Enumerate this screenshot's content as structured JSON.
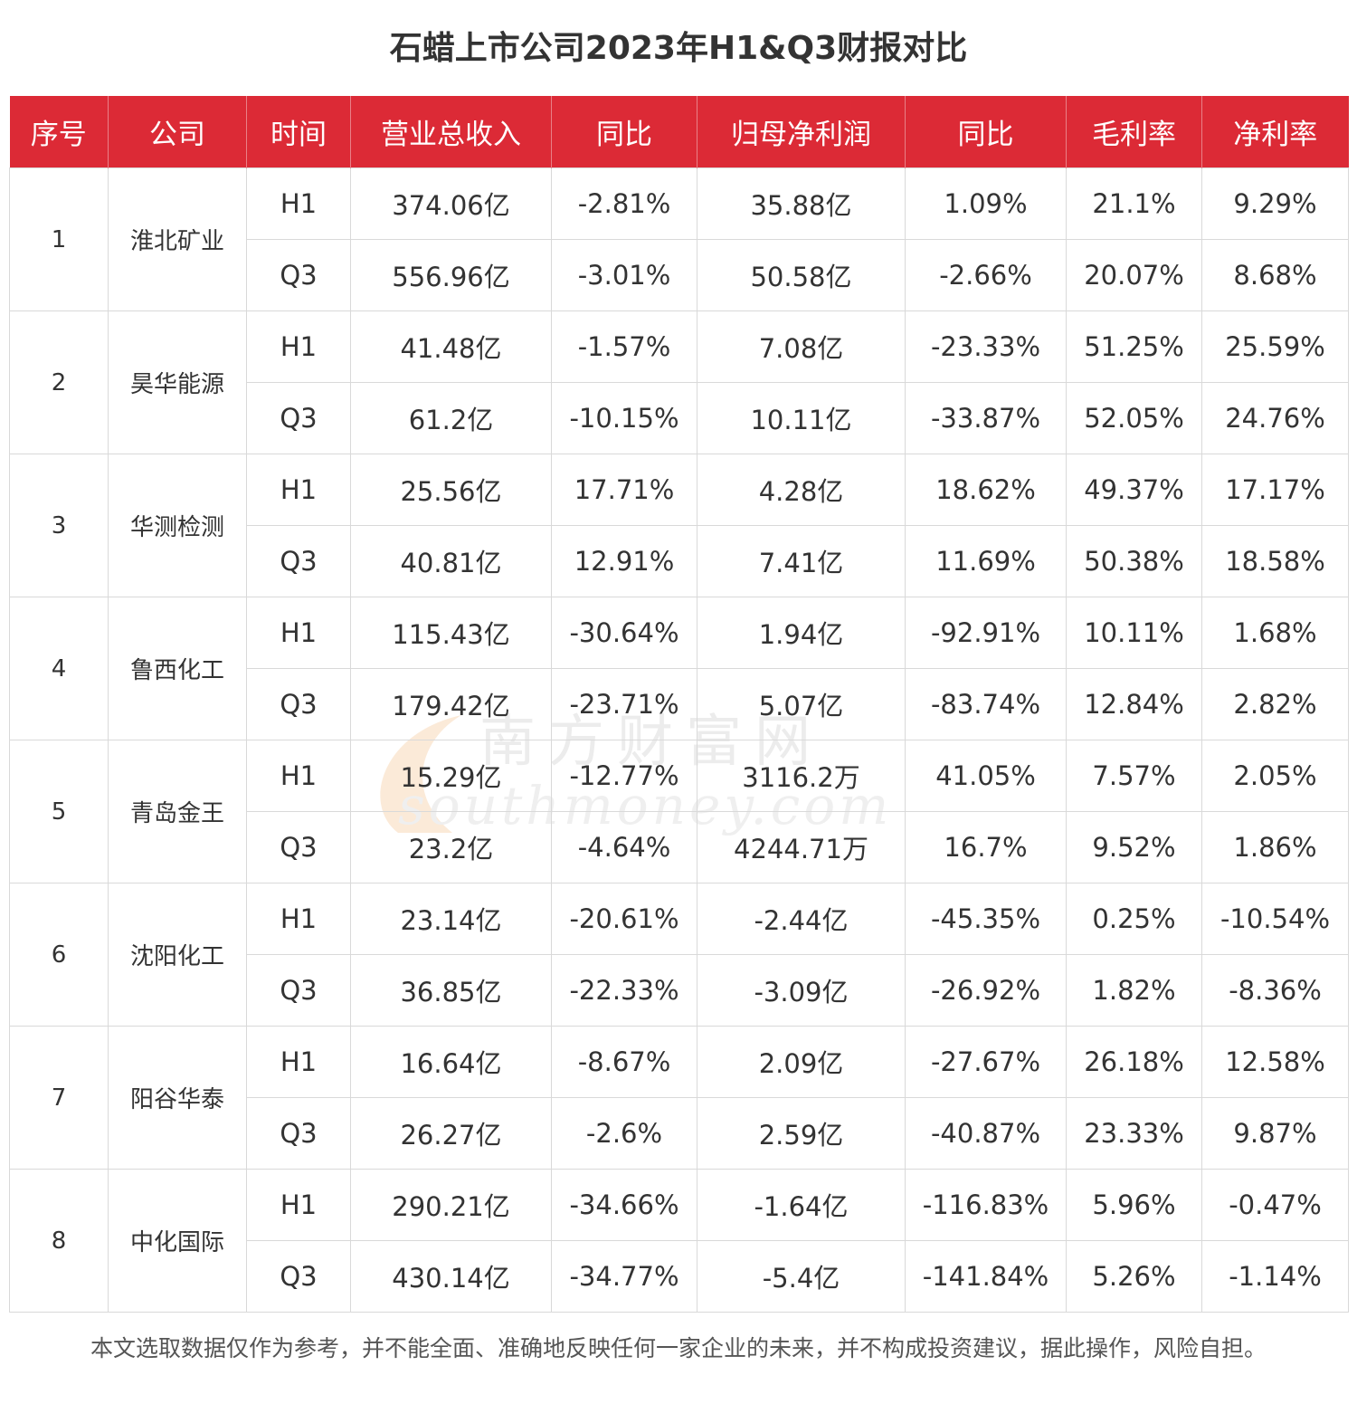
{
  "title": "石蜡上市公司2023年H1&Q3财报对比",
  "watermark": {
    "name": "南方财富网",
    "site": "southmoney.com"
  },
  "table": {
    "headers": [
      "序号",
      "公司",
      "时间",
      "营业总收入",
      "同比",
      "归母净利润",
      "同比",
      "毛利率",
      "净利率"
    ],
    "companies": [
      {
        "seq": "1",
        "name": "淮北矿业",
        "rows": [
          {
            "period": "H1",
            "revenue": "374.06亿",
            "revenue_yoy": "-2.81%",
            "net_profit": "35.88亿",
            "profit_yoy": "1.09%",
            "gross_margin": "21.1%",
            "net_margin": "9.29%"
          },
          {
            "period": "Q3",
            "revenue": "556.96亿",
            "revenue_yoy": "-3.01%",
            "net_profit": "50.58亿",
            "profit_yoy": "-2.66%",
            "gross_margin": "20.07%",
            "net_margin": "8.68%"
          }
        ]
      },
      {
        "seq": "2",
        "name": "昊华能源",
        "rows": [
          {
            "period": "H1",
            "revenue": "41.48亿",
            "revenue_yoy": "-1.57%",
            "net_profit": "7.08亿",
            "profit_yoy": "-23.33%",
            "gross_margin": "51.25%",
            "net_margin": "25.59%"
          },
          {
            "period": "Q3",
            "revenue": "61.2亿",
            "revenue_yoy": "-10.15%",
            "net_profit": "10.11亿",
            "profit_yoy": "-33.87%",
            "gross_margin": "52.05%",
            "net_margin": "24.76%"
          }
        ]
      },
      {
        "seq": "3",
        "name": "华测检测",
        "rows": [
          {
            "period": "H1",
            "revenue": "25.56亿",
            "revenue_yoy": "17.71%",
            "net_profit": "4.28亿",
            "profit_yoy": "18.62%",
            "gross_margin": "49.37%",
            "net_margin": "17.17%"
          },
          {
            "period": "Q3",
            "revenue": "40.81亿",
            "revenue_yoy": "12.91%",
            "net_profit": "7.41亿",
            "profit_yoy": "11.69%",
            "gross_margin": "50.38%",
            "net_margin": "18.58%"
          }
        ]
      },
      {
        "seq": "4",
        "name": "鲁西化工",
        "rows": [
          {
            "period": "H1",
            "revenue": "115.43亿",
            "revenue_yoy": "-30.64%",
            "net_profit": "1.94亿",
            "profit_yoy": "-92.91%",
            "gross_margin": "10.11%",
            "net_margin": "1.68%"
          },
          {
            "period": "Q3",
            "revenue": "179.42亿",
            "revenue_yoy": "-23.71%",
            "net_profit": "5.07亿",
            "profit_yoy": "-83.74%",
            "gross_margin": "12.84%",
            "net_margin": "2.82%"
          }
        ]
      },
      {
        "seq": "5",
        "name": "青岛金王",
        "rows": [
          {
            "period": "H1",
            "revenue": "15.29亿",
            "revenue_yoy": "-12.77%",
            "net_profit": "3116.2万",
            "profit_yoy": "41.05%",
            "gross_margin": "7.57%",
            "net_margin": "2.05%"
          },
          {
            "period": "Q3",
            "revenue": "23.2亿",
            "revenue_yoy": "-4.64%",
            "net_profit": "4244.71万",
            "profit_yoy": "16.7%",
            "gross_margin": "9.52%",
            "net_margin": "1.86%"
          }
        ]
      },
      {
        "seq": "6",
        "name": "沈阳化工",
        "rows": [
          {
            "period": "H1",
            "revenue": "23.14亿",
            "revenue_yoy": "-20.61%",
            "net_profit": "-2.44亿",
            "profit_yoy": "-45.35%",
            "gross_margin": "0.25%",
            "net_margin": "-10.54%"
          },
          {
            "period": "Q3",
            "revenue": "36.85亿",
            "revenue_yoy": "-22.33%",
            "net_profit": "-3.09亿",
            "profit_yoy": "-26.92%",
            "gross_margin": "1.82%",
            "net_margin": "-8.36%"
          }
        ]
      },
      {
        "seq": "7",
        "name": "阳谷华泰",
        "rows": [
          {
            "period": "H1",
            "revenue": "16.64亿",
            "revenue_yoy": "-8.67%",
            "net_profit": "2.09亿",
            "profit_yoy": "-27.67%",
            "gross_margin": "26.18%",
            "net_margin": "12.58%"
          },
          {
            "period": "Q3",
            "revenue": "26.27亿",
            "revenue_yoy": "-2.6%",
            "net_profit": "2.59亿",
            "profit_yoy": "-40.87%",
            "gross_margin": "23.33%",
            "net_margin": "9.87%"
          }
        ]
      },
      {
        "seq": "8",
        "name": "中化国际",
        "rows": [
          {
            "period": "H1",
            "revenue": "290.21亿",
            "revenue_yoy": "-34.66%",
            "net_profit": "-1.64亿",
            "profit_yoy": "-116.83%",
            "gross_margin": "5.96%",
            "net_margin": "-0.47%"
          },
          {
            "period": "Q3",
            "revenue": "430.14亿",
            "revenue_yoy": "-34.77%",
            "net_profit": "-5.4亿",
            "profit_yoy": "-141.84%",
            "gross_margin": "5.26%",
            "net_margin": "-1.14%"
          }
        ]
      }
    ]
  },
  "footnote": "本文选取数据仅作为参考，并不能全面、准确地反映任何一家企业的未来，并不构成投资建议，据此操作，风险自担。",
  "colors": {
    "header_bg": "#dc2a36",
    "header_text": "#ffffff",
    "grid": "#d9d9d9",
    "text": "#333333",
    "watermark": "#f2c9a3"
  }
}
